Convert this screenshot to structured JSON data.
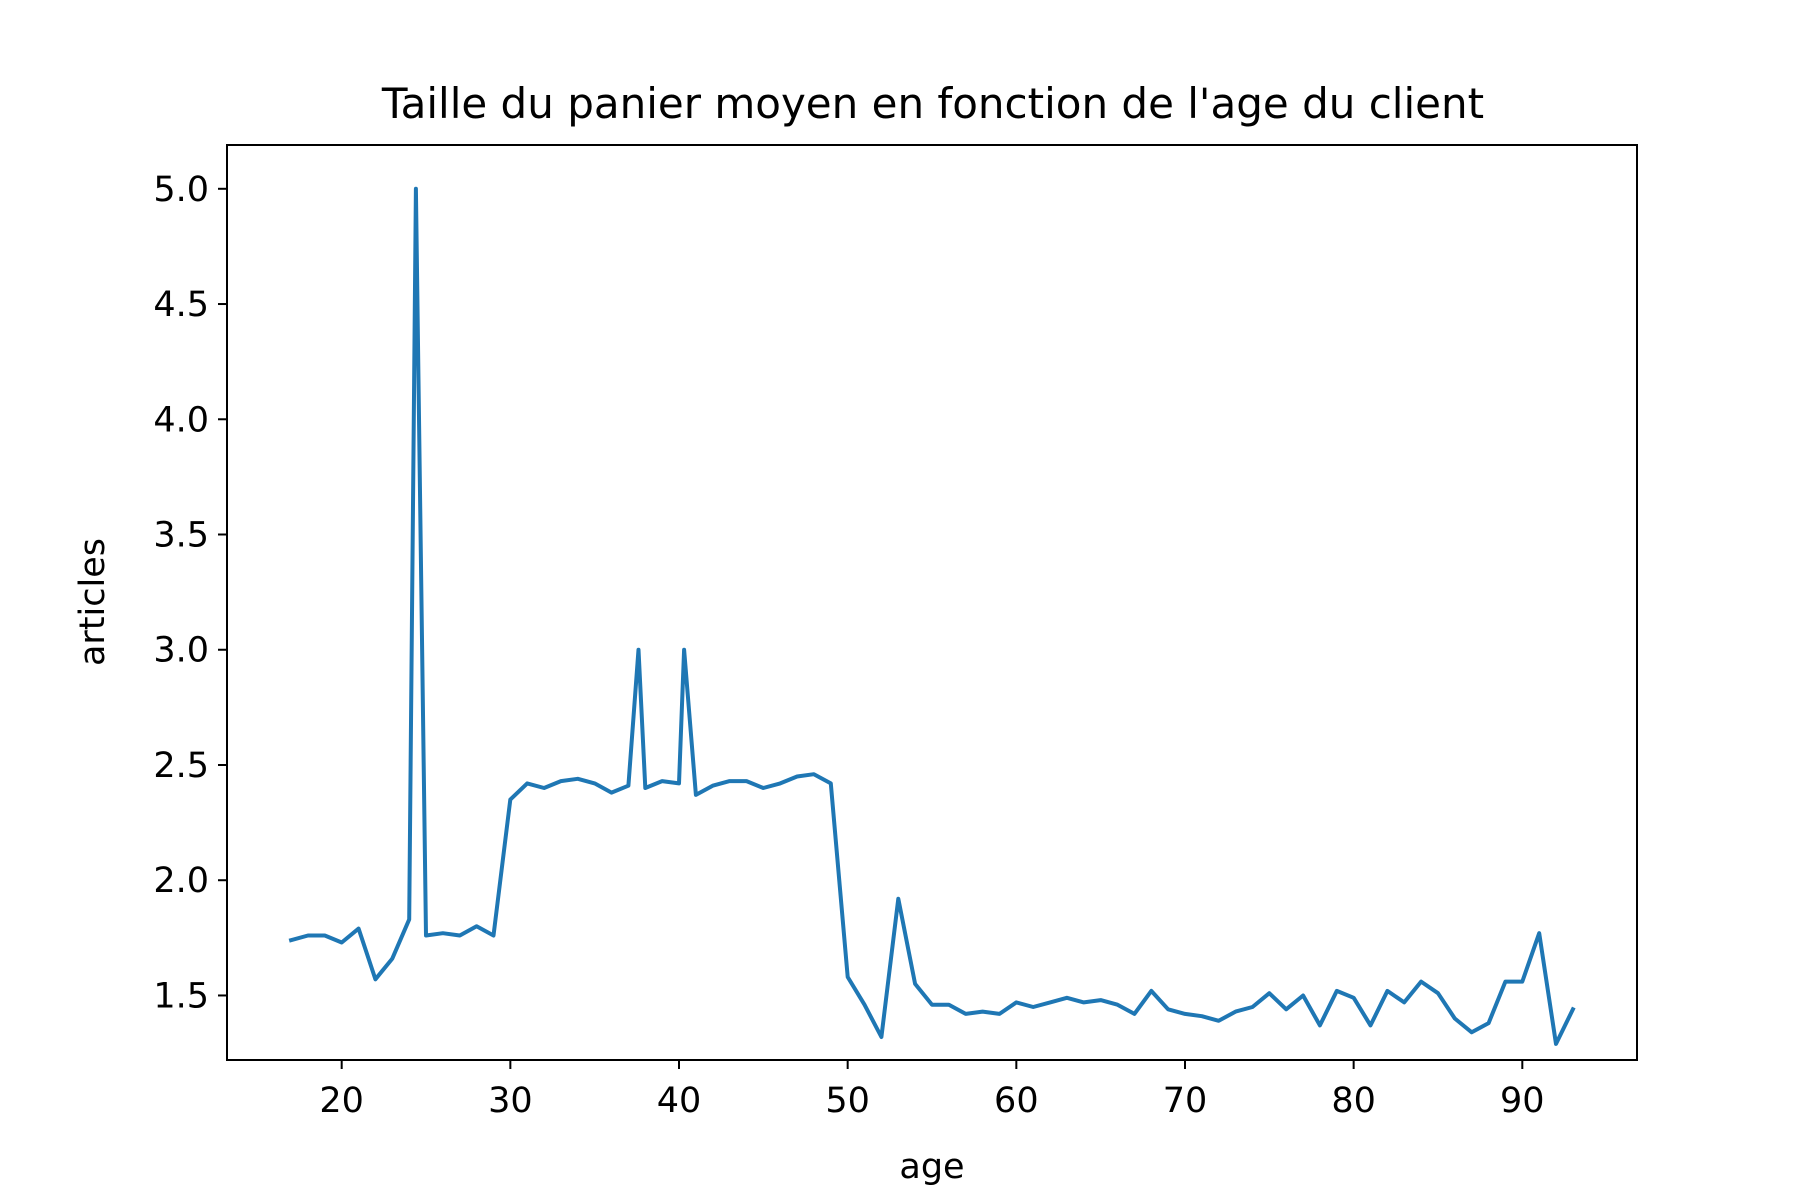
{
  "chart_data": {
    "type": "line",
    "title": "Taille du panier moyen en fonction de l'age du client",
    "xlabel": "age",
    "ylabel": "articles",
    "xlim": [
      13.2,
      96.8
    ],
    "ylim": [
      1.22,
      5.19
    ],
    "xticks": [
      "20",
      "30",
      "40",
      "50",
      "60",
      "70",
      "80",
      "90"
    ],
    "yticks": [
      "1.5",
      "2.0",
      "2.5",
      "3.0",
      "3.5",
      "4.0",
      "4.5",
      "5.0"
    ],
    "grid": false,
    "color": "#1f77b4",
    "series": [
      {
        "x": [
          17,
          18,
          19,
          20,
          21,
          22,
          23,
          24,
          24.4,
          25,
          26,
          27,
          28,
          29,
          30,
          31,
          32,
          33,
          34,
          35,
          36,
          37,
          37.6,
          38,
          39,
          40,
          40.3,
          41,
          42,
          43,
          44,
          45,
          46,
          47,
          48,
          49,
          50,
          51,
          52,
          53,
          54,
          55,
          56,
          57,
          58,
          59,
          60,
          61,
          62,
          63,
          64,
          65,
          66,
          67,
          68,
          69,
          70,
          71,
          72,
          73,
          74,
          75,
          76,
          77,
          78,
          79,
          80,
          81,
          82,
          83,
          84,
          85,
          86,
          87,
          88,
          89,
          90,
          91,
          92,
          93
        ],
        "values": [
          1.74,
          1.76,
          1.76,
          1.73,
          1.79,
          1.57,
          1.66,
          1.83,
          5.0,
          1.76,
          1.77,
          1.76,
          1.8,
          1.76,
          2.35,
          2.42,
          2.4,
          2.43,
          2.44,
          2.42,
          2.38,
          2.41,
          3.0,
          2.4,
          2.43,
          2.42,
          3.0,
          2.37,
          2.41,
          2.43,
          2.43,
          2.4,
          2.42,
          2.45,
          2.46,
          2.42,
          1.58,
          1.46,
          1.32,
          1.92,
          1.55,
          1.46,
          1.46,
          1.42,
          1.43,
          1.42,
          1.47,
          1.45,
          1.47,
          1.49,
          1.47,
          1.48,
          1.46,
          1.42,
          1.52,
          1.44,
          1.42,
          1.41,
          1.39,
          1.43,
          1.45,
          1.51,
          1.44,
          1.5,
          1.37,
          1.52,
          1.49,
          1.37,
          1.52,
          1.47,
          1.56,
          1.51,
          1.4,
          1.34,
          1.38,
          1.56,
          1.56,
          1.77,
          1.29,
          1.44
        ]
      }
    ]
  }
}
